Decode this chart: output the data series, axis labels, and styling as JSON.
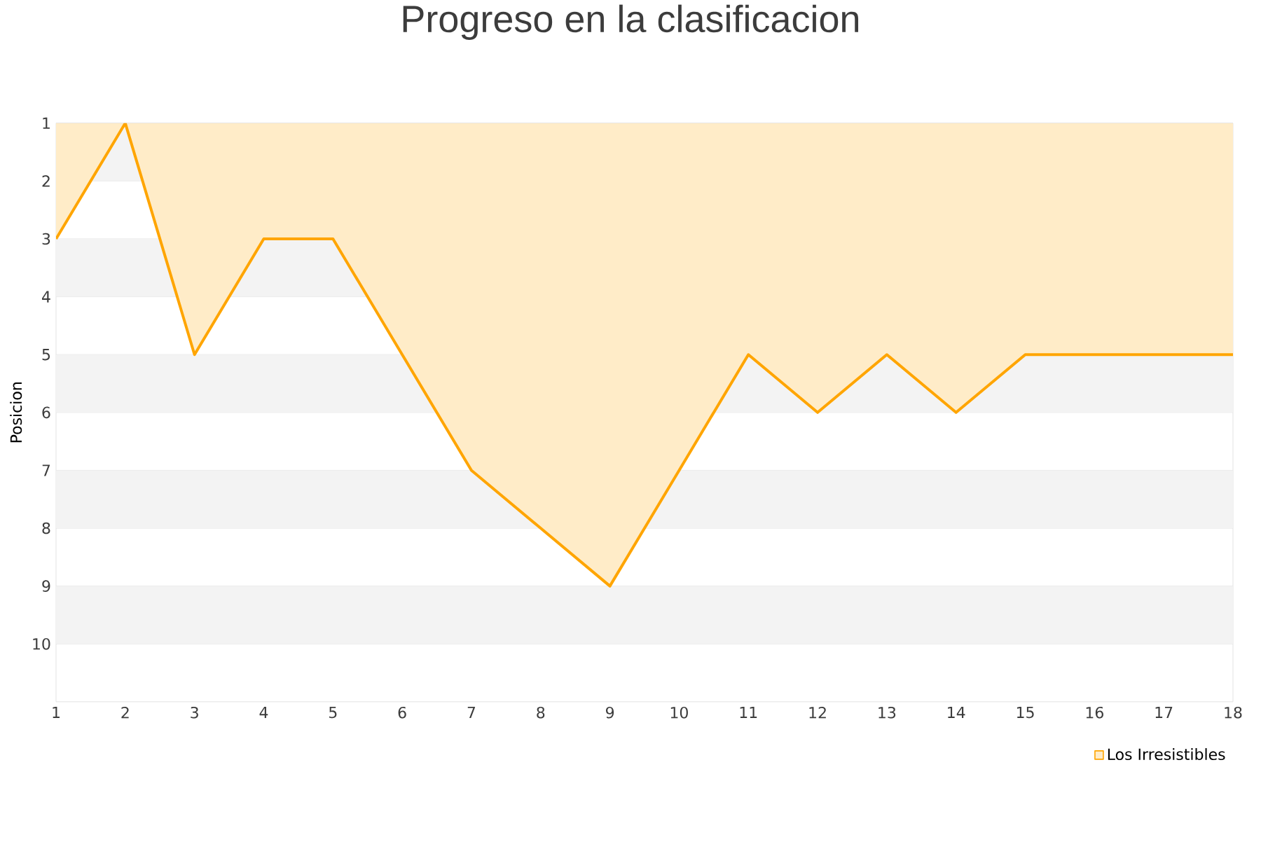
{
  "chart_data": {
    "type": "area",
    "title": "Progreso en la clasificacion",
    "ylabel": "Posicion",
    "x": [
      1,
      2,
      3,
      4,
      5,
      6,
      7,
      8,
      9,
      10,
      11,
      12,
      13,
      14,
      15,
      16,
      17,
      18
    ],
    "series": [
      {
        "name": "Los Irresistibles",
        "color": "#ffa500",
        "values": [
          3,
          1,
          5,
          3,
          3,
          5,
          7,
          8,
          9,
          7,
          5,
          6,
          5,
          6,
          5,
          5,
          5,
          5
        ]
      }
    ],
    "xlim": [
      1,
      18
    ],
    "xticks": [
      1,
      2,
      3,
      4,
      5,
      6,
      7,
      8,
      9,
      10,
      11,
      12,
      13,
      14,
      15,
      16,
      17,
      18
    ],
    "ylim": [
      11,
      1
    ],
    "yticks": [
      1,
      2,
      3,
      4,
      5,
      6,
      7,
      8,
      9,
      10
    ],
    "grid": "y",
    "legend": "bottom right",
    "marker": "none",
    "line_style": "solid"
  }
}
